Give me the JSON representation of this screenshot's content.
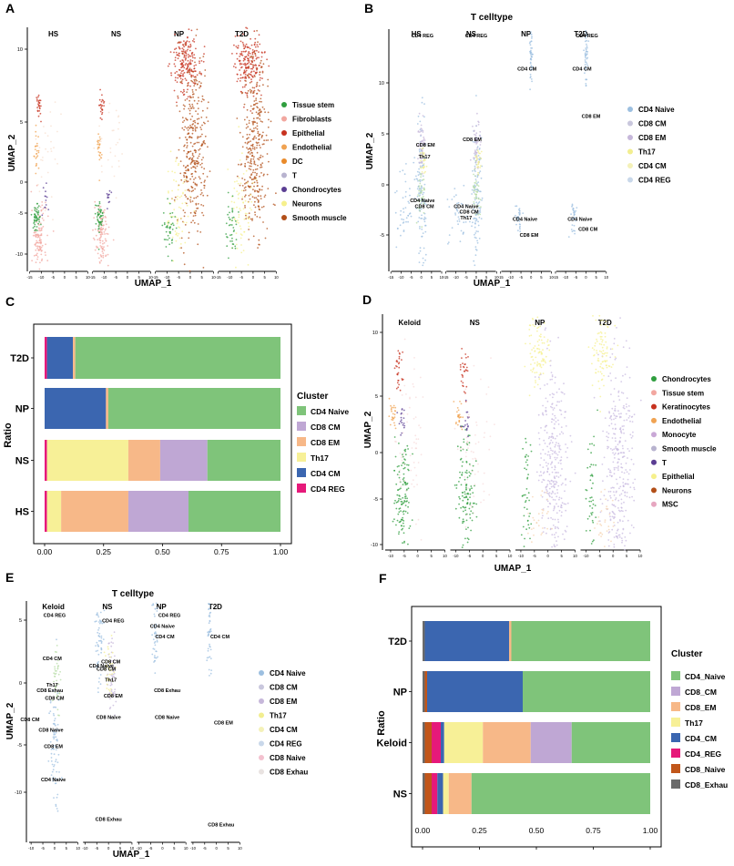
{
  "colors": {
    "cell_palette": {
      "Tissue stem": "#e8a1a6",
      "Fibroblasts": "#f2a7a0",
      "Epithelial": "#c7321f",
      "Endothelial": "#f0a352",
      "DC": "#e98a2a",
      "T": "#b8b3cf",
      "Chondrocytes": "#5b3e93",
      "Neurons": "#f6f08c",
      "Smooth muscle": "#b24f18",
      "Keratinocytes": "#c7321f",
      "Monocyte": "#f0a352",
      "MSC": "#e6a6c0",
      "green": "#2f9e3e"
    },
    "tcell_palette": {
      "CD4 Naive": "#9cbfe0",
      "CD8 CM": "#c9c7dd",
      "CD8 EM": "#c6b7da",
      "Th17": "#f2ee90",
      "CD4 CM": "#f4f1b8",
      "CD4 REG": "#c9d8ea",
      "CD8  Naive": "#f3c1cf",
      "CD8 Exhau": "#e9e3e1"
    },
    "bar_palette": {
      "CD4 Naive": "#7fc47a",
      "CD8 CM": "#bfa7d4",
      "CD8 EM": "#f7b888",
      "Th17": "#f7f097",
      "CD4 CM": "#3b66b0",
      "CD4 REG": "#e6197a",
      "CD8 Naive": "#c1561a",
      "CD8 Exhau": "#6a6a6a"
    }
  },
  "panels": {
    "A": {
      "letter": "A",
      "groups": [
        "HS",
        "NS",
        "NP",
        "T2D"
      ],
      "xlabel": "UMAP_1",
      "ylabel": "UMAP_2",
      "yticks": [
        "10",
        "5",
        "0",
        "-5",
        "-10"
      ],
      "xticks": [
        "-15",
        "-10",
        "-5",
        "0",
        "5",
        "10"
      ],
      "legend": [
        "Tissue stem",
        "Fibroblasts",
        "Epithelial",
        "Endothelial",
        "DC",
        "T",
        "Chondrocytes",
        "Neurons",
        "Smooth muscle"
      ],
      "legend_colors": [
        "#2f9e3e",
        "#f2a7a0",
        "#c7321f",
        "#f0a352",
        "#e98a2a",
        "#b8b3cf",
        "#5b3e93",
        "#f6f08c",
        "#b24f18"
      ]
    },
    "B": {
      "letter": "B",
      "title": "T celltype",
      "groups": [
        "HS",
        "NS",
        "NP",
        "T2D"
      ],
      "xlabel": "UMAP_1",
      "ylabel": "UMAP_2",
      "yticks": [
        "10",
        "5",
        "0",
        "-5"
      ],
      "xticks": [
        "-15",
        "-10",
        "-5",
        "0",
        "5",
        "10"
      ],
      "legend": [
        "CD4 Naive",
        "CD8 CM",
        "CD8 EM",
        "Th17",
        "CD4 CM",
        "CD4 REG"
      ],
      "legend_colors": [
        "#9cbfe0",
        "#c9c7dd",
        "#c6b7da",
        "#f2ee90",
        "#f4f1b8",
        "#c9d8ea"
      ],
      "labels": [
        {
          "t": "CD4 REG",
          "g": 0,
          "x": 0.5,
          "y": 12.3
        },
        {
          "t": "CD4 REG",
          "g": 1,
          "x": 0.0,
          "y": 12.3
        },
        {
          "t": "CD4 REG",
          "g": 3,
          "x": 0.5,
          "y": 12.3
        },
        {
          "t": "CD4 CM",
          "g": 2,
          "x": -2.0,
          "y": 9.4
        },
        {
          "t": "CD4 CM",
          "g": 3,
          "x": -2.0,
          "y": 9.4
        },
        {
          "t": "CD8 EM",
          "g": 3,
          "x": 2.5,
          "y": 5.3
        },
        {
          "t": "CD8 EM",
          "g": 0,
          "x": 2.0,
          "y": 2.8
        },
        {
          "t": "CD8 EM",
          "g": 1,
          "x": -2.0,
          "y": 3.3
        },
        {
          "t": "Th17",
          "g": 0,
          "x": 1.5,
          "y": 1.8
        },
        {
          "t": "CD4 Naive",
          "g": 0,
          "x": 0.5,
          "y": -2.0
        },
        {
          "t": "CD8 CM",
          "g": 0,
          "x": 1.5,
          "y": -2.5
        },
        {
          "t": "CD4 Naive",
          "g": 1,
          "x": -5.0,
          "y": -2.5
        },
        {
          "t": "CD8 CM",
          "g": 1,
          "x": -3.5,
          "y": -3.0
        },
        {
          "t": "Th17",
          "g": 1,
          "x": -5.0,
          "y": -3.5
        },
        {
          "t": "CD4 Naive",
          "g": 2,
          "x": -3.0,
          "y": -3.6
        },
        {
          "t": "CD8 EM",
          "g": 2,
          "x": -1.0,
          "y": -5.0
        },
        {
          "t": "CD4 Naive",
          "g": 3,
          "x": -3.0,
          "y": -3.6
        },
        {
          "t": "CD8 CM",
          "g": 3,
          "x": 1.0,
          "y": -4.5
        }
      ]
    },
    "D": {
      "letter": "D",
      "groups": [
        "Keloid",
        "NS",
        "NP",
        "T2D"
      ],
      "xlabel": "UMAP_1",
      "ylabel": "UMAP_2",
      "yticks": [
        "10",
        "5",
        "0",
        "-5",
        "-10"
      ],
      "xticks": [
        "-10",
        "-5",
        "0",
        "5",
        "10"
      ],
      "legend": [
        "Chondrocytes",
        "Tissue stem",
        "Keratinocytes",
        "Endothelial",
        "Monocyte",
        "Smooth muscle",
        "T",
        "Epithelial",
        "Neurons",
        "MSC"
      ],
      "legend_colors": [
        "#2f9e3e",
        "#f2a7a0",
        "#c7321f",
        "#f0a352",
        "#c9a8d6",
        "#b8b3cf",
        "#5b3e93",
        "#f6f08c",
        "#b24f18",
        "#e6a6c0"
      ]
    },
    "E": {
      "letter": "E",
      "title": "T celltype",
      "groups": [
        "Keloid",
        "NS",
        "NP",
        "T2D"
      ],
      "xlabel": "UMAP_1",
      "ylabel": "UMAP_2",
      "yticks": [
        "5",
        "0",
        "-5",
        "-10"
      ],
      "xticks": [
        "-10",
        "-5",
        "0",
        "5",
        "10"
      ],
      "legend": [
        "CD4 Naive",
        "CD8 CM",
        "CD8 EM",
        "Th17",
        "CD4 CM",
        "CD4 REG",
        "CD8  Naive",
        "CD8 Exhau"
      ],
      "legend_colors": [
        "#9cbfe0",
        "#c9c7dd",
        "#c6b7da",
        "#f2ee90",
        "#f4f1b8",
        "#c9d8ea",
        "#f3c1cf",
        "#e9e3e1"
      ],
      "labels": [
        {
          "t": "CD4 REG",
          "g": 0,
          "x": 0.0,
          "y": 5.5
        },
        {
          "t": "CD4 REG",
          "g": 1,
          "x": 2.0,
          "y": 5.0
        },
        {
          "t": "CD4 REG",
          "g": 2,
          "x": 3.0,
          "y": 5.5
        },
        {
          "t": "CD4 Naive",
          "g": 2,
          "x": 0.0,
          "y": 4.5
        },
        {
          "t": "CD4 CM",
          "g": 2,
          "x": 1.0,
          "y": 3.5
        },
        {
          "t": "CD4 CM",
          "g": 3,
          "x": 1.5,
          "y": 3.5
        },
        {
          "t": "CD4 CM",
          "g": 0,
          "x": -1.0,
          "y": 1.5
        },
        {
          "t": "CD4 Naive",
          "g": 1,
          "x": -3.0,
          "y": 0.8
        },
        {
          "t": "CD8 CM",
          "g": 1,
          "x": 1.0,
          "y": 1.2
        },
        {
          "t": "CD8 CM",
          "g": 1,
          "x": -1.0,
          "y": 0.5
        },
        {
          "t": "Th17",
          "g": 0,
          "x": -1.0,
          "y": -1.0
        },
        {
          "t": "CD8 Exhau",
          "g": 0,
          "x": -2.0,
          "y": -1.5
        },
        {
          "t": "CD8 CM",
          "g": 0,
          "x": 0.0,
          "y": -2.2
        },
        {
          "t": "Th17",
          "g": 1,
          "x": 1.0,
          "y": -0.5
        },
        {
          "t": "CD8 EM",
          "g": 1,
          "x": 2.0,
          "y": -2.0
        },
        {
          "t": "CD8 Exhau",
          "g": 2,
          "x": 2.0,
          "y": -1.5
        },
        {
          "t": "CD8 Naive",
          "g": 1,
          "x": 0.0,
          "y": -4.0
        },
        {
          "t": "CD8 Naive",
          "g": 2,
          "x": 2.0,
          "y": -4.0
        },
        {
          "t": "CD8 EM",
          "g": 3,
          "x": 3.0,
          "y": -4.5
        },
        {
          "t": "CD8 CM",
          "g": 0,
          "x": -10.5,
          "y": -4.2
        },
        {
          "t": "CD8 Naive",
          "g": 0,
          "x": -1.5,
          "y": -5.2
        },
        {
          "t": "CD8 EM",
          "g": 0,
          "x": -0.5,
          "y": -6.7
        },
        {
          "t": "CD4 Naive",
          "g": 0,
          "x": -0.5,
          "y": -9.8
        },
        {
          "t": "CD8 Exhau",
          "g": 1,
          "x": 0.0,
          "y": -13.5
        },
        {
          "t": "CD8 Exhau",
          "g": 3,
          "x": 2.0,
          "y": -14.0
        }
      ]
    },
    "C": {
      "letter": "C",
      "ylabel": "Ratio",
      "legend_title": "Cluster"
    },
    "F": {
      "letter": "F",
      "ylabel": "Ratio",
      "legend_title": "Cluster"
    }
  },
  "chart_data": [
    {
      "type": "bar",
      "orientation": "horizontal",
      "stacked": true,
      "panel": "C",
      "ylabel": "Ratio",
      "legend_title": "Cluster",
      "categories": [
        "T2D",
        "NP",
        "NS",
        "HS"
      ],
      "xlim": [
        0,
        1
      ],
      "xticks": [
        "0.00",
        "0.25",
        "0.50",
        "0.75",
        "1.00"
      ],
      "stack_order": [
        "CD4 REG",
        "CD4 CM",
        "Th17",
        "CD8 EM",
        "CD8 CM",
        "CD4 Naive"
      ],
      "legend_order": [
        "CD4 Naive",
        "CD8 CM",
        "CD8 EM",
        "Th17",
        "CD4 CM",
        "CD4 REG"
      ],
      "series": [
        {
          "name": "CD4 REG",
          "values": [
            0.01,
            0.0,
            0.01,
            0.01
          ]
        },
        {
          "name": "CD4 CM",
          "values": [
            0.11,
            0.26,
            0.0,
            0.0
          ]
        },
        {
          "name": "Th17",
          "values": [
            0.0,
            0.0,
            0.345,
            0.06
          ]
        },
        {
          "name": "CD8 EM",
          "values": [
            0.01,
            0.01,
            0.135,
            0.285
          ]
        },
        {
          "name": "CD8 CM",
          "values": [
            0.0,
            0.0,
            0.2,
            0.255
          ]
        },
        {
          "name": "CD4 Naive",
          "values": [
            0.87,
            0.73,
            0.31,
            0.39
          ]
        }
      ]
    },
    {
      "type": "bar",
      "orientation": "horizontal",
      "stacked": true,
      "panel": "F",
      "ylabel": "Ratio",
      "legend_title": "Cluster",
      "categories": [
        "T2D",
        "NP",
        "Keloid",
        "NS"
      ],
      "xlim": [
        0,
        1
      ],
      "xticks": [
        "0.00",
        "0.25",
        "0.50",
        "0.75",
        "1.00"
      ],
      "stack_order": [
        "CD8_Exhau",
        "CD8_Naive",
        "CD4_REG",
        "CD4_CM",
        "Th17",
        "CD8_EM",
        "CD8_CM",
        "CD4_Naive"
      ],
      "legend_order": [
        "CD4_Naive",
        "CD8_CM",
        "CD8_EM",
        "Th17",
        "CD4_CM",
        "CD4_REG",
        "CD8_Naive",
        "CD8_Exhau"
      ],
      "series": [
        {
          "name": "CD8_Exhau",
          "values": [
            0.01,
            0.01,
            0.01,
            0.01
          ]
        },
        {
          "name": "CD8_Naive",
          "values": [
            0.0,
            0.01,
            0.03,
            0.03
          ]
        },
        {
          "name": "CD4_REG",
          "values": [
            0.0,
            0.0,
            0.04,
            0.025
          ]
        },
        {
          "name": "CD4_CM",
          "values": [
            0.37,
            0.42,
            0.015,
            0.025
          ]
        },
        {
          "name": "Th17",
          "values": [
            0.0,
            0.0,
            0.17,
            0.025
          ]
        },
        {
          "name": "CD8_EM",
          "values": [
            0.01,
            0.0,
            0.21,
            0.1
          ]
        },
        {
          "name": "CD8_CM",
          "values": [
            0.0,
            0.0,
            0.18,
            0.0
          ]
        },
        {
          "name": "CD4_Naive",
          "values": [
            0.61,
            0.56,
            0.345,
            0.785
          ]
        }
      ]
    }
  ]
}
